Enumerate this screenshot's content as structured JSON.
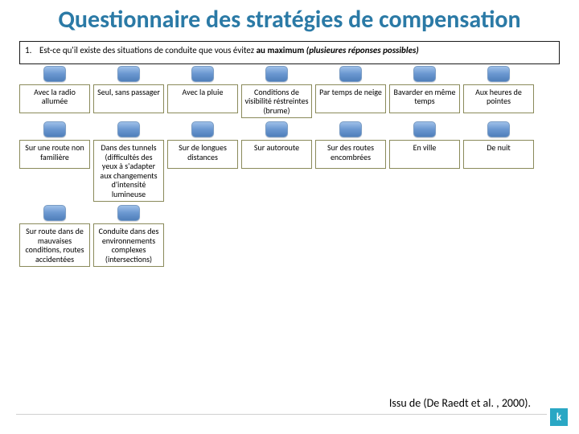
{
  "title_color": "#2b7aa6",
  "title": "Questionnaire des stratégies de compensation",
  "question": {
    "number": "1.",
    "lead": "Est-ce qu'il existe des situations de conduite que vous évitez ",
    "bold": "au maximum",
    "note": " (plusieures réponses possibles)"
  },
  "chip_width": 28,
  "chip_height": 20,
  "chip_gradient_top": "#9ec0e8",
  "chip_gradient_mid": "#6a97d0",
  "chip_gradient_bot": "#4f7fba",
  "box_border": "#8a8a5a",
  "rows": [
    {
      "items": [
        {
          "label": "Avec la radio allumée"
        },
        {
          "label": "Seul, sans passager"
        },
        {
          "label": "Avec la pluie"
        },
        {
          "label": "Conditions de visibilité réstreintes (brume)"
        },
        {
          "label": "Par temps de neige"
        },
        {
          "label": "Bavarder en même temps"
        },
        {
          "label": "Aux heures de pointes"
        }
      ]
    },
    {
      "items": [
        {
          "label": "Sur une route non familière"
        },
        {
          "label": "Dans des tunnels (difficultés des yeux à s'adapter aux changements d'intensité lumineuse"
        },
        {
          "label": "Sur de longues distances"
        },
        {
          "label": "Sur autoroute"
        },
        {
          "label": "Sur des routes encombrées"
        },
        {
          "label": "En ville"
        },
        {
          "label": "De nuit"
        }
      ]
    },
    {
      "items": [
        {
          "label": "Sur route dans de mauvaises conditions, routes accidentées"
        },
        {
          "label": "Conduite dans des environnements complexes (intersections)"
        }
      ]
    }
  ],
  "citation": "Issu de (De Raedt et al. , 2000).",
  "logo_bg": "#2aa7c4",
  "logo_text": "k"
}
